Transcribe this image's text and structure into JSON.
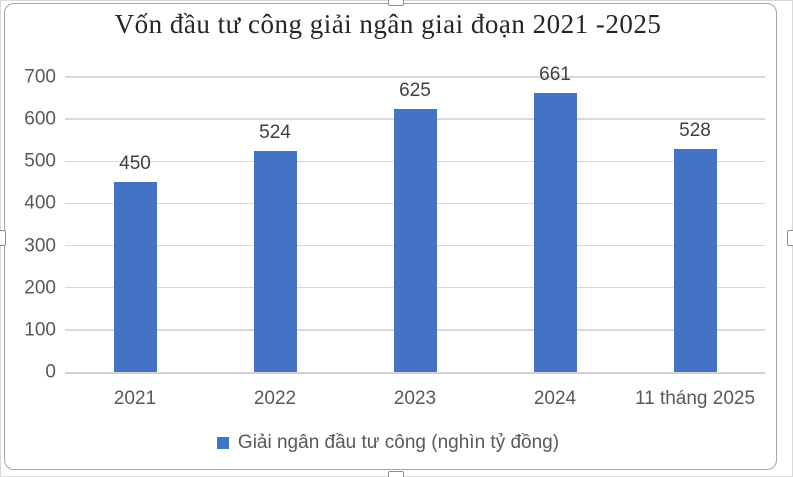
{
  "chart": {
    "title": "Vốn đầu tư công giải ngân giai đoạn 2021 -2025",
    "legend": {
      "label": "Giải ngân đầu tư công (nghìn tỷ đồng)",
      "marker_color": "#4472C4"
    }
  },
  "chart_data": {
    "type": "bar",
    "title": "Vốn đầu tư công giải ngân giai đoạn 2021 -2025",
    "categories": [
      "2021",
      "2022",
      "2023",
      "2024",
      "11 tháng 2025"
    ],
    "values": [
      450,
      524,
      625,
      661,
      528
    ],
    "series_name": "Giải ngân đầu tư công (nghìn tỷ đồng)",
    "xlabel": "",
    "ylabel": "",
    "ylim": [
      0,
      700
    ],
    "yticks": [
      0,
      100,
      200,
      300,
      400,
      500,
      600,
      700
    ],
    "grid": "horizontal",
    "legend_position": "bottom",
    "data_labels_shown": true
  },
  "colors": {
    "bar": "#4472C4",
    "gridline": "#D9D9D9",
    "axis_line": "#D0D0D0",
    "tick_text": "#595959",
    "data_label_text": "#404040",
    "title_text": "#262626"
  }
}
